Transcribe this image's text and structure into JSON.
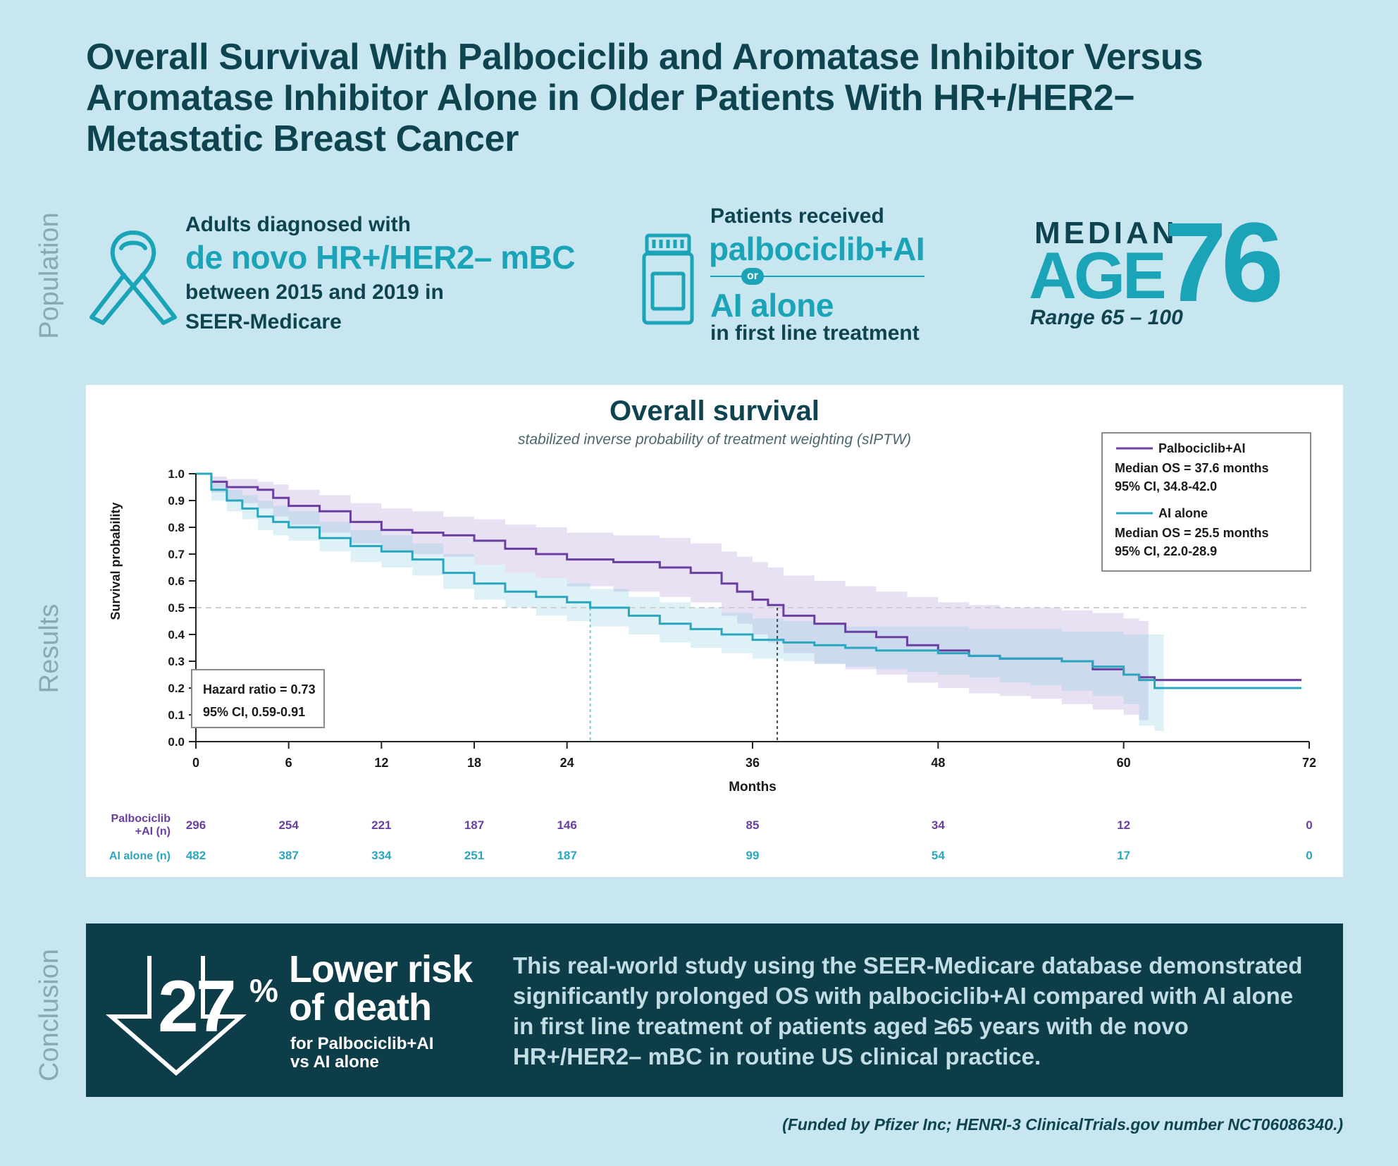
{
  "title": "Overall Survival With Palbociclib and Aromatase Inhibitor Versus Aromatase Inhibitor Alone in Older Patients With HR+/HER2− Metastatic Breast Cancer",
  "sections": {
    "population": "Population",
    "results": "Results",
    "conclusion": "Conclusion"
  },
  "population": {
    "icon1": "awareness-ribbon-icon",
    "line1": "Adults diagnosed with",
    "highlight": "de novo HR+/HER2– mBC",
    "line3": "between 2015 and 2019 in",
    "line4": "SEER-Medicare",
    "icon2": "pill-bottle-icon",
    "received": "Patients received",
    "treatment1": "palbociclib+AI",
    "or": "or",
    "treatment2": "AI alone",
    "line_treatment": "in first line treatment",
    "median_label": "MEDIAN",
    "age_label": "AGE",
    "median_age": "76",
    "range": "Range 65 – 100"
  },
  "chart_data": {
    "type": "line",
    "title": "Overall survival",
    "subtitle": "stabilized inverse probability of treatment weighting (sIPTW)",
    "xlabel": "Months",
    "ylabel": "Survival probability",
    "xlim": [
      0,
      72
    ],
    "ylim": [
      0,
      1.0
    ],
    "x_ticks": [
      "0",
      "6",
      "12",
      "18",
      "24",
      "36",
      "48",
      "60",
      "72"
    ],
    "y_ticks": [
      "0.0",
      "0.1",
      "0.2",
      "0.3",
      "0.4",
      "0.5",
      "0.6",
      "0.7",
      "0.8",
      "0.9",
      "1.0"
    ],
    "reference_line_y": 0.5,
    "series": [
      {
        "name": "Palbociclib+AI",
        "color": "#6a3fa0",
        "median_os_months": 37.6,
        "legend_median": "Median OS = 37.6 months",
        "legend_ci": "95% CI, 34.8-42.0",
        "x": [
          0,
          1,
          2,
          3,
          4,
          5,
          6,
          8,
          10,
          12,
          14,
          16,
          18,
          20,
          22,
          24,
          27,
          30,
          32,
          34,
          35,
          36,
          37,
          38,
          40,
          42,
          44,
          46,
          48,
          50,
          52,
          54,
          56,
          58,
          60,
          61,
          62,
          64,
          66,
          68,
          70,
          71.5
        ],
        "y": [
          1.0,
          0.97,
          0.95,
          0.95,
          0.94,
          0.91,
          0.88,
          0.86,
          0.82,
          0.79,
          0.78,
          0.77,
          0.75,
          0.72,
          0.7,
          0.68,
          0.67,
          0.65,
          0.63,
          0.59,
          0.56,
          0.53,
          0.51,
          0.47,
          0.44,
          0.41,
          0.39,
          0.36,
          0.34,
          0.32,
          0.31,
          0.31,
          0.3,
          0.27,
          0.25,
          0.24,
          0.23,
          0.23,
          0.23,
          0.23,
          0.23,
          0.23
        ],
        "ci_upper": [
          1.0,
          0.99,
          0.98,
          0.98,
          0.97,
          0.96,
          0.94,
          0.92,
          0.89,
          0.87,
          0.86,
          0.84,
          0.83,
          0.81,
          0.8,
          0.78,
          0.77,
          0.76,
          0.74,
          0.71,
          0.69,
          0.67,
          0.65,
          0.62,
          0.6,
          0.58,
          0.56,
          0.54,
          0.52,
          0.51,
          0.5,
          0.5,
          0.49,
          0.48,
          0.46,
          0.45
        ],
        "ci_lower": [
          1.0,
          0.93,
          0.9,
          0.89,
          0.87,
          0.84,
          0.81,
          0.78,
          0.74,
          0.71,
          0.7,
          0.69,
          0.66,
          0.63,
          0.61,
          0.58,
          0.56,
          0.54,
          0.52,
          0.47,
          0.44,
          0.4,
          0.37,
          0.33,
          0.29,
          0.27,
          0.25,
          0.22,
          0.2,
          0.18,
          0.17,
          0.16,
          0.14,
          0.12,
          0.1,
          0.08
        ],
        "at_risk": [
          "296",
          "254",
          "221",
          "187",
          "146",
          "85",
          "34",
          "12",
          "0"
        ]
      },
      {
        "name": "AI alone",
        "color": "#2aa7bf",
        "median_os_months": 25.5,
        "legend_median": "Median OS = 25.5 months",
        "legend_ci": "95% CI, 22.0-28.9",
        "x": [
          0,
          1,
          2,
          3,
          4,
          5,
          6,
          8,
          10,
          12,
          14,
          16,
          18,
          20,
          22,
          24,
          25.5,
          28,
          30,
          32,
          34,
          36,
          38,
          40,
          42,
          44,
          46,
          48,
          50,
          52,
          54,
          56,
          58,
          60,
          61,
          62,
          64,
          66,
          68,
          70,
          71.5
        ],
        "y": [
          1.0,
          0.94,
          0.9,
          0.87,
          0.84,
          0.82,
          0.8,
          0.76,
          0.73,
          0.71,
          0.68,
          0.63,
          0.59,
          0.56,
          0.54,
          0.52,
          0.5,
          0.47,
          0.44,
          0.42,
          0.4,
          0.38,
          0.37,
          0.36,
          0.35,
          0.34,
          0.34,
          0.33,
          0.32,
          0.31,
          0.31,
          0.3,
          0.28,
          0.25,
          0.23,
          0.2,
          0.2,
          0.2,
          0.2,
          0.2,
          0.2
        ],
        "ci_upper": [
          1.0,
          0.97,
          0.94,
          0.92,
          0.9,
          0.88,
          0.86,
          0.82,
          0.79,
          0.77,
          0.74,
          0.7,
          0.66,
          0.63,
          0.61,
          0.59,
          0.57,
          0.54,
          0.52,
          0.5,
          0.48,
          0.46,
          0.45,
          0.44,
          0.43,
          0.43,
          0.43,
          0.43,
          0.42,
          0.42,
          0.42,
          0.41,
          0.41,
          0.4,
          0.4,
          0.4
        ],
        "ci_lower": [
          1.0,
          0.9,
          0.86,
          0.83,
          0.79,
          0.77,
          0.75,
          0.71,
          0.67,
          0.65,
          0.62,
          0.57,
          0.53,
          0.5,
          0.47,
          0.45,
          0.43,
          0.4,
          0.37,
          0.35,
          0.33,
          0.31,
          0.3,
          0.29,
          0.28,
          0.27,
          0.26,
          0.25,
          0.24,
          0.22,
          0.21,
          0.19,
          0.17,
          0.14,
          0.06,
          0.04
        ],
        "at_risk": [
          "482",
          "387",
          "334",
          "251",
          "187",
          "99",
          "54",
          "17",
          "0"
        ]
      }
    ],
    "at_risk_x": [
      0,
      6,
      12,
      18,
      24,
      36,
      48,
      60,
      72
    ],
    "at_risk_labels": [
      "Palbociclib +AI (n)",
      "AI alone (n)"
    ],
    "hazard_ratio_text": "Hazard ratio = 0.73",
    "hazard_ci_text": "95% CI, 0.59-0.91",
    "legend_position": "top-right",
    "grid": false
  },
  "conclusion": {
    "icon": "down-arrow-icon",
    "percent": "27",
    "percent_symbol": "%",
    "lower_risk_line1": "Lower risk",
    "lower_risk_line2": "of death",
    "for_line1": "for Palbociclib+AI",
    "for_line2": "vs AI alone",
    "body": "This real-world study using the SEER-Medicare database demonstrated significantly prolonged OS with palbociclib+AI compared with AI alone in first line treatment of patients aged ≥65 years with de novo HR+/HER2– mBC in routine US clinical practice."
  },
  "funding": "(Funded by Pfizer Inc; HENRI-3 ClinicalTrials.gov number NCT06086340.)"
}
